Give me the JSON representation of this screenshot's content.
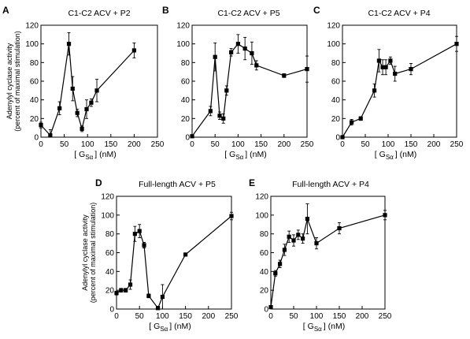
{
  "figure": {
    "ylabel_line1": "Adenylyl cyclase activity",
    "ylabel_line2": "(percent of maximal stimulation)",
    "xlabel_prefix": "[ G",
    "xlabel_sub": "Sα",
    "xlabel_suffix": "] (nM)"
  },
  "chart_data": [
    {
      "panel": "A",
      "title": "C1-C2 ACV + P2",
      "type": "line",
      "xlim": [
        0,
        250
      ],
      "ylim": [
        0,
        120
      ],
      "xticks": [
        0,
        50,
        100,
        150,
        200,
        250
      ],
      "yticks": [
        0,
        20,
        40,
        60,
        80,
        100,
        120
      ],
      "x": [
        0,
        20,
        40,
        60,
        68,
        78,
        88,
        98,
        108,
        120,
        200
      ],
      "y": [
        13,
        2,
        31,
        100,
        52,
        26,
        9,
        30,
        37,
        50,
        93
      ],
      "err": [
        3,
        6,
        7,
        12,
        13,
        4,
        3,
        10,
        4,
        12,
        8
      ]
    },
    {
      "panel": "B",
      "title": "C1-C2 ACV + P5",
      "type": "line",
      "xlim": [
        0,
        250
      ],
      "ylim": [
        0,
        120
      ],
      "xticks": [
        0,
        50,
        100,
        150,
        200,
        250
      ],
      "yticks": [
        0,
        20,
        40,
        60,
        80,
        100,
        120
      ],
      "x": [
        0,
        40,
        50,
        60,
        68,
        75,
        85,
        100,
        115,
        130,
        140,
        200,
        250
      ],
      "y": [
        1,
        28,
        86,
        23,
        20,
        50,
        91,
        100,
        95,
        90,
        77,
        66,
        73
      ],
      "err": [
        0,
        5,
        15,
        4,
        5,
        5,
        4,
        10,
        12,
        12,
        5,
        2,
        14
      ]
    },
    {
      "panel": "C",
      "title": "C1-C2 ACV + P4",
      "type": "line",
      "xlim": [
        0,
        250
      ],
      "ylim": [
        0,
        120
      ],
      "xticks": [
        0,
        50,
        100,
        150,
        200,
        250
      ],
      "yticks": [
        0,
        20,
        40,
        60,
        80,
        100,
        120
      ],
      "x": [
        0,
        20,
        40,
        70,
        80,
        88,
        95,
        105,
        115,
        150,
        250
      ],
      "y": [
        0,
        16,
        20,
        50,
        82,
        75,
        75,
        82,
        68,
        73,
        100
      ],
      "err": [
        0,
        3,
        2,
        7,
        12,
        8,
        8,
        4,
        8,
        6,
        8
      ]
    },
    {
      "panel": "D",
      "title": "Full-length ACV + P5",
      "type": "line",
      "xlim": [
        0,
        250
      ],
      "ylim": [
        0,
        120
      ],
      "xticks": [
        0,
        50,
        100,
        150,
        200,
        250
      ],
      "yticks": [
        0,
        20,
        40,
        60,
        80,
        100,
        120
      ],
      "x": [
        0,
        10,
        20,
        30,
        40,
        50,
        60,
        70,
        90,
        100,
        150,
        250
      ],
      "y": [
        17,
        20,
        20,
        26,
        80,
        83,
        68,
        14,
        1,
        13,
        58,
        99
      ],
      "err": [
        2,
        2,
        2,
        5,
        8,
        7,
        3,
        2,
        2,
        13,
        1,
        4
      ]
    },
    {
      "panel": "E",
      "title": "Full-length ACV + P4",
      "type": "line",
      "xlim": [
        0,
        250
      ],
      "ylim": [
        0,
        120
      ],
      "xticks": [
        0,
        50,
        100,
        150,
        200,
        250
      ],
      "yticks": [
        0,
        20,
        40,
        60,
        80,
        100,
        120
      ],
      "x": [
        0,
        10,
        20,
        30,
        40,
        50,
        60,
        70,
        80,
        100,
        150,
        250
      ],
      "y": [
        2,
        38,
        48,
        63,
        77,
        73,
        79,
        75,
        96,
        70,
        86,
        100
      ],
      "err": [
        1,
        3,
        4,
        6,
        6,
        6,
        5,
        5,
        16,
        6,
        6,
        5
      ]
    }
  ]
}
